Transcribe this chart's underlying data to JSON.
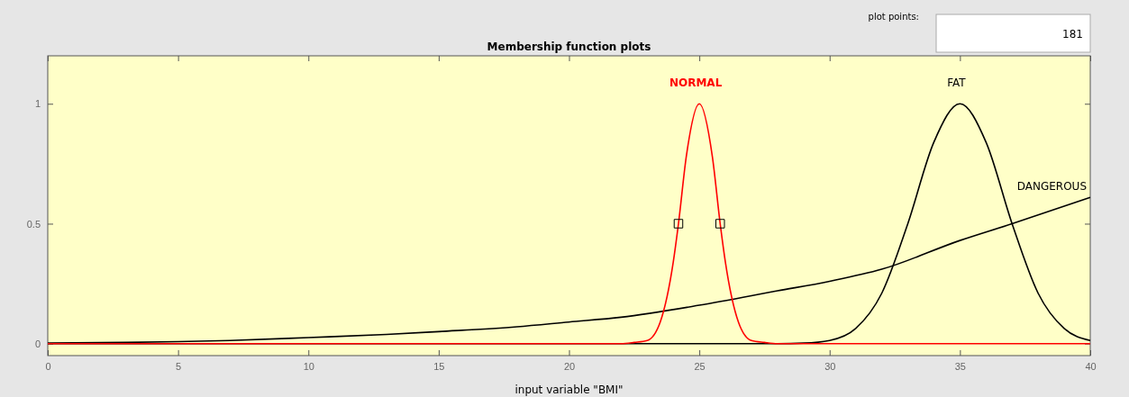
{
  "chart_data": {
    "type": "line",
    "title": "Membership function plots",
    "xlabel": "input variable \"BMI\"",
    "xlim": [
      0,
      40
    ],
    "xticks": [
      0,
      5,
      10,
      15,
      20,
      25,
      30,
      35,
      40
    ],
    "ylim": [
      -0.05,
      1.2
    ],
    "yticks": [
      0,
      0.5,
      1
    ],
    "grid": false,
    "annotations": [
      "plot points:",
      "181"
    ],
    "series": [
      {
        "name": "DANGEROUS",
        "color": "#000000",
        "x": [
          0,
          3,
          5,
          7,
          10,
          13,
          15,
          18,
          20,
          22,
          25,
          28,
          30,
          32,
          35,
          37,
          40
        ],
        "values": [
          0.002,
          0.005,
          0.008,
          0.013,
          0.025,
          0.038,
          0.05,
          0.07,
          0.09,
          0.11,
          0.16,
          0.22,
          0.26,
          0.31,
          0.43,
          0.5,
          0.61
        ]
      },
      {
        "name": "FAT",
        "color": "#000000",
        "x": [
          0,
          28,
          29,
          30,
          31,
          32,
          33,
          34,
          35,
          36,
          37,
          38,
          39,
          40
        ],
        "values": [
          0,
          0,
          0.002,
          0.013,
          0.063,
          0.21,
          0.5,
          0.84,
          1,
          0.84,
          0.5,
          0.21,
          0.063,
          0.013
        ]
      },
      {
        "name": "NORMAL",
        "color": "#ff0000",
        "x": [
          0,
          22,
          22.5,
          23,
          23.5,
          24,
          24.2,
          24.5,
          25,
          25.5,
          25.8,
          26,
          26.5,
          27,
          27.5,
          28,
          40
        ],
        "values": [
          0,
          0,
          0.005,
          0.013,
          0.09,
          0.34,
          0.5,
          0.78,
          1,
          0.78,
          0.5,
          0.34,
          0.09,
          0.013,
          0.005,
          0,
          0
        ]
      },
      {
        "type": "scatter",
        "marker": "square",
        "color": "#000000",
        "x": [
          24.2,
          25.8
        ],
        "values": [
          0.5,
          0.5
        ]
      }
    ]
  }
}
